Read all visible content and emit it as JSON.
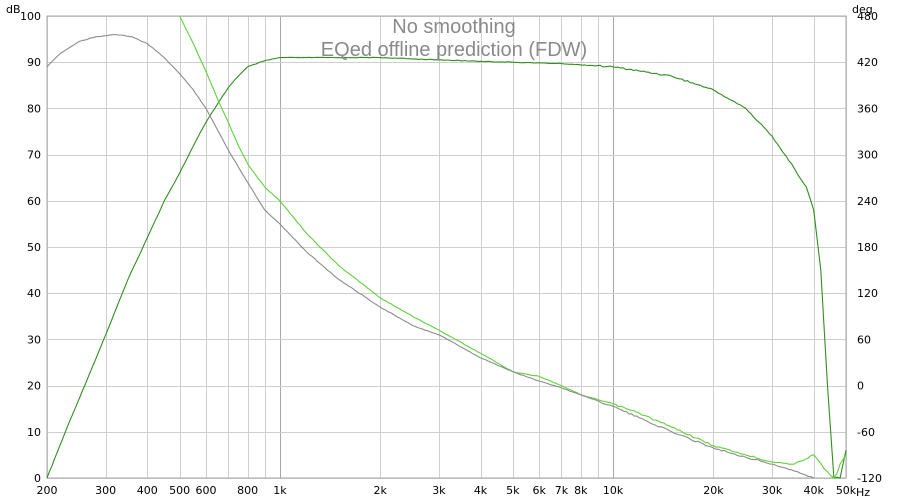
{
  "chart_data": {
    "type": "line",
    "title": "No smoothing",
    "subtitle": "EQed offline prediction (FDW)",
    "xscale": "log",
    "xlim": [
      200,
      50000
    ],
    "ylim_left": [
      0,
      100
    ],
    "ylim_right": [
      -120,
      480
    ],
    "left_unit": "dB",
    "right_unit": "deg",
    "x_unit": "Hz",
    "x_ticks": [
      200,
      300,
      400,
      500,
      600,
      800,
      1000,
      2000,
      3000,
      4000,
      5000,
      6000,
      7000,
      8000,
      10000,
      20000,
      30000,
      40000,
      50000
    ],
    "x_tick_labels": [
      "200",
      "300",
      "400",
      "500",
      "600",
      "800",
      "1k",
      "2k",
      "3k",
      "4k",
      "5k",
      "6k",
      "7k",
      "8k",
      "10k",
      "20k",
      "30k",
      "40k",
      "50k"
    ],
    "y_ticks_left": [
      0,
      10,
      20,
      30,
      40,
      50,
      60,
      70,
      80,
      90,
      100
    ],
    "y_ticks_right": [
      -120,
      -60,
      0,
      60,
      120,
      180,
      240,
      300,
      360,
      420,
      480
    ],
    "grid": true,
    "legend": "none",
    "series": [
      {
        "axis": "left",
        "color": "#2f8f1f",
        "x": [
          200,
          230,
          270,
          300,
          350,
          400,
          450,
          500,
          560,
          600,
          650,
          700,
          750,
          800,
          900,
          1000,
          1200,
          1500,
          2000,
          3000,
          4000,
          5000,
          7000,
          10000,
          15000,
          20000,
          25000,
          30000,
          35000,
          38000,
          40000,
          42000,
          44000,
          46000,
          48000,
          50000
        ],
        "y": [
          0,
          11,
          23,
          31,
          43,
          52,
          60,
          66,
          73,
          77,
          81,
          84.5,
          87,
          89,
          90.3,
          91,
          91,
          91,
          91,
          90.5,
          90.2,
          90,
          89.7,
          89,
          87,
          84,
          80,
          74,
          67,
          63,
          58,
          45,
          20,
          0,
          0,
          6
        ]
      },
      {
        "axis": "left",
        "color": "#5fd13a",
        "x": [
          500,
          550,
          600,
          650,
          700,
          750,
          800,
          900,
          1000,
          1200,
          1500,
          2000,
          2500,
          3000,
          4000,
          5000,
          6000,
          7000,
          8000,
          10000,
          12000,
          15000,
          20000,
          25000,
          30000,
          35000,
          40000,
          43000,
          45000,
          46000,
          47000,
          48000,
          50000
        ],
        "y": [
          100,
          94,
          88,
          82,
          77,
          72,
          68,
          63,
          60,
          53,
          46,
          39,
          35,
          32,
          27,
          23,
          22,
          20,
          18,
          16,
          14,
          11,
          7,
          5,
          3.5,
          3,
          5,
          2,
          0.5,
          0,
          1,
          3,
          5
        ]
      },
      {
        "axis": "left",
        "color": "#8c8c8c",
        "x": [
          200,
          220,
          250,
          280,
          320,
          360,
          400,
          450,
          500,
          550,
          600,
          700,
          800,
          900,
          1000,
          1200,
          1500,
          2000,
          2500,
          3000,
          4000,
          5000,
          6000,
          7000,
          8000,
          10000,
          12000,
          15000,
          20000,
          25000,
          30000,
          35000,
          40000
        ],
        "y": [
          89,
          92,
          94.5,
          95.5,
          96,
          95.5,
          94,
          91,
          87.5,
          84,
          80,
          71,
          64,
          58,
          55,
          49,
          43,
          37,
          33,
          31,
          26,
          23,
          21,
          19.5,
          18,
          15.5,
          13,
          10,
          6.5,
          4.5,
          3,
          1.5,
          0
        ]
      }
    ]
  }
}
